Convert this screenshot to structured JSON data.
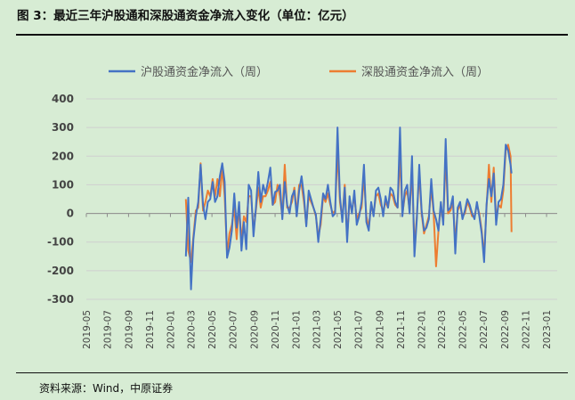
{
  "figure": {
    "title": "图 3：最近三年沪股通和深股通资金净流入变化（单位：亿元）",
    "source": "资料来源：Wind，中原证券"
  },
  "colors": {
    "series_sh": "#4472c4",
    "series_sz": "#ed7d31",
    "background": "#d7ecd4",
    "grid": "#cfcfcf"
  },
  "chart_data": {
    "type": "line",
    "grid": true,
    "legend_position": "top",
    "ylim": [
      -300,
      400
    ],
    "yticks": [
      -300,
      -200,
      -100,
      0,
      100,
      200,
      300,
      400
    ],
    "xlim": [
      "2019-05",
      "2023-02"
    ],
    "xticks": [
      "2019-05",
      "2019-07",
      "2019-09",
      "2019-11",
      "2020-01",
      "2020-03",
      "2020-05",
      "2020-07",
      "2020-09",
      "2020-11",
      "2021-01",
      "2021-03",
      "2021-05",
      "2021-07",
      "2021-09",
      "2021-11",
      "2022-01",
      "2022-03",
      "2022-05",
      "2022-07",
      "2022-09",
      "2022-11",
      "2023-01"
    ],
    "series": [
      {
        "name": "沪股通资金净流入（周）",
        "points": [
          [
            "2020-02-15",
            -150
          ],
          [
            "2020-02-22",
            55
          ],
          [
            "2020-03-01",
            -265
          ],
          [
            "2020-03-08",
            -90
          ],
          [
            "2020-03-15",
            -10
          ],
          [
            "2020-03-22",
            40
          ],
          [
            "2020-03-29",
            170
          ],
          [
            "2020-04-05",
            30
          ],
          [
            "2020-04-12",
            -20
          ],
          [
            "2020-04-19",
            40
          ],
          [
            "2020-04-26",
            50
          ],
          [
            "2020-05-03",
            110
          ],
          [
            "2020-05-10",
            40
          ],
          [
            "2020-05-17",
            60
          ],
          [
            "2020-05-24",
            130
          ],
          [
            "2020-05-31",
            175
          ],
          [
            "2020-06-07",
            110
          ],
          [
            "2020-06-14",
            -155
          ],
          [
            "2020-06-21",
            -120
          ],
          [
            "2020-06-28",
            -60
          ],
          [
            "2020-07-05",
            70
          ],
          [
            "2020-07-12",
            -50
          ],
          [
            "2020-07-19",
            40
          ],
          [
            "2020-07-26",
            -130
          ],
          [
            "2020-08-02",
            -30
          ],
          [
            "2020-08-09",
            -125
          ],
          [
            "2020-08-16",
            100
          ],
          [
            "2020-08-23",
            80
          ],
          [
            "2020-08-30",
            -80
          ],
          [
            "2020-09-06",
            20
          ],
          [
            "2020-09-13",
            145
          ],
          [
            "2020-09-20",
            40
          ],
          [
            "2020-09-27",
            100
          ],
          [
            "2020-10-04",
            70
          ],
          [
            "2020-10-11",
            110
          ],
          [
            "2020-10-18",
            160
          ],
          [
            "2020-10-25",
            30
          ],
          [
            "2020-11-01",
            75
          ],
          [
            "2020-11-08",
            80
          ],
          [
            "2020-11-15",
            100
          ],
          [
            "2020-11-22",
            -20
          ],
          [
            "2020-11-29",
            110
          ],
          [
            "2020-12-06",
            30
          ],
          [
            "2020-12-13",
            0
          ],
          [
            "2020-12-20",
            60
          ],
          [
            "2020-12-27",
            80
          ],
          [
            "2021-01-03",
            -10
          ],
          [
            "2021-01-10",
            80
          ],
          [
            "2021-01-17",
            130
          ],
          [
            "2021-01-24",
            60
          ],
          [
            "2021-01-31",
            -45
          ],
          [
            "2021-02-07",
            80
          ],
          [
            "2021-02-14",
            50
          ],
          [
            "2021-02-21",
            20
          ],
          [
            "2021-02-28",
            -5
          ],
          [
            "2021-03-07",
            -100
          ],
          [
            "2021-03-14",
            -20
          ],
          [
            "2021-03-21",
            70
          ],
          [
            "2021-03-28",
            50
          ],
          [
            "2021-04-04",
            100
          ],
          [
            "2021-04-11",
            40
          ],
          [
            "2021-04-18",
            -10
          ],
          [
            "2021-04-25",
            0
          ],
          [
            "2021-05-02",
            300
          ],
          [
            "2021-05-09",
            60
          ],
          [
            "2021-05-16",
            -30
          ],
          [
            "2021-05-23",
            90
          ],
          [
            "2021-05-30",
            -100
          ],
          [
            "2021-06-06",
            60
          ],
          [
            "2021-06-13",
            0
          ],
          [
            "2021-06-20",
            80
          ],
          [
            "2021-06-27",
            -40
          ],
          [
            "2021-07-04",
            -10
          ],
          [
            "2021-07-11",
            40
          ],
          [
            "2021-07-18",
            170
          ],
          [
            "2021-07-25",
            -30
          ],
          [
            "2021-08-01",
            -60
          ],
          [
            "2021-08-08",
            40
          ],
          [
            "2021-08-15",
            -10
          ],
          [
            "2021-08-22",
            80
          ],
          [
            "2021-08-29",
            90
          ],
          [
            "2021-09-05",
            50
          ],
          [
            "2021-09-12",
            -10
          ],
          [
            "2021-09-19",
            60
          ],
          [
            "2021-09-26",
            20
          ],
          [
            "2021-10-03",
            90
          ],
          [
            "2021-10-10",
            80
          ],
          [
            "2021-10-17",
            40
          ],
          [
            "2021-10-24",
            20
          ],
          [
            "2021-10-31",
            300
          ],
          [
            "2021-11-07",
            -10
          ],
          [
            "2021-11-14",
            80
          ],
          [
            "2021-11-21",
            100
          ],
          [
            "2021-11-28",
            0
          ],
          [
            "2021-12-05",
            200
          ],
          [
            "2021-12-12",
            -150
          ],
          [
            "2021-12-19",
            -20
          ],
          [
            "2021-12-26",
            170
          ],
          [
            "2022-01-02",
            10
          ],
          [
            "2022-01-09",
            -60
          ],
          [
            "2022-01-16",
            -50
          ],
          [
            "2022-01-23",
            -20
          ],
          [
            "2022-01-30",
            120
          ],
          [
            "2022-02-06",
            10
          ],
          [
            "2022-02-13",
            -20
          ],
          [
            "2022-02-20",
            -60
          ],
          [
            "2022-02-27",
            40
          ],
          [
            "2022-03-06",
            -40
          ],
          [
            "2022-03-13",
            260
          ],
          [
            "2022-03-20",
            10
          ],
          [
            "2022-03-27",
            20
          ],
          [
            "2022-04-03",
            60
          ],
          [
            "2022-04-10",
            -140
          ],
          [
            "2022-04-17",
            20
          ],
          [
            "2022-04-24",
            40
          ],
          [
            "2022-05-01",
            -20
          ],
          [
            "2022-05-08",
            10
          ],
          [
            "2022-05-15",
            50
          ],
          [
            "2022-05-22",
            30
          ],
          [
            "2022-05-29",
            0
          ],
          [
            "2022-06-05",
            -20
          ],
          [
            "2022-06-12",
            40
          ],
          [
            "2022-06-19",
            -10
          ],
          [
            "2022-06-26",
            -70
          ],
          [
            "2022-07-03",
            -170
          ],
          [
            "2022-07-10",
            30
          ],
          [
            "2022-07-17",
            120
          ],
          [
            "2022-07-24",
            60
          ],
          [
            "2022-07-31",
            140
          ],
          [
            "2022-08-07",
            -40
          ],
          [
            "2022-08-14",
            40
          ],
          [
            "2022-08-21",
            50
          ],
          [
            "2022-08-28",
            100
          ],
          [
            "2022-09-04",
            240
          ],
          [
            "2022-09-11",
            220
          ],
          [
            "2022-09-18",
            170
          ],
          [
            "2022-09-21",
            140
          ]
        ]
      },
      {
        "name": "深股通资金净流入（周）",
        "points": [
          [
            "2020-02-15",
            50
          ],
          [
            "2020-02-22",
            -130
          ],
          [
            "2020-03-01",
            -170
          ],
          [
            "2020-03-08",
            -80
          ],
          [
            "2020-03-15",
            10
          ],
          [
            "2020-03-22",
            20
          ],
          [
            "2020-03-29",
            175
          ],
          [
            "2020-04-05",
            10
          ],
          [
            "2020-04-12",
            40
          ],
          [
            "2020-04-19",
            80
          ],
          [
            "2020-04-26",
            60
          ],
          [
            "2020-05-03",
            120
          ],
          [
            "2020-05-10",
            60
          ],
          [
            "2020-05-17",
            120
          ],
          [
            "2020-05-24",
            60
          ],
          [
            "2020-05-31",
            160
          ],
          [
            "2020-06-07",
            60
          ],
          [
            "2020-06-14",
            -140
          ],
          [
            "2020-06-21",
            -70
          ],
          [
            "2020-06-28",
            -40
          ],
          [
            "2020-07-05",
            20
          ],
          [
            "2020-07-12",
            -90
          ],
          [
            "2020-07-19",
            30
          ],
          [
            "2020-07-26",
            -100
          ],
          [
            "2020-08-02",
            -10
          ],
          [
            "2020-08-09",
            -30
          ],
          [
            "2020-08-16",
            60
          ],
          [
            "2020-08-23",
            60
          ],
          [
            "2020-08-30",
            -60
          ],
          [
            "2020-09-06",
            10
          ],
          [
            "2020-09-13",
            90
          ],
          [
            "2020-09-20",
            20
          ],
          [
            "2020-09-27",
            60
          ],
          [
            "2020-10-04",
            60
          ],
          [
            "2020-10-11",
            80
          ],
          [
            "2020-10-18",
            110
          ],
          [
            "2020-10-25",
            30
          ],
          [
            "2020-11-01",
            40
          ],
          [
            "2020-11-08",
            100
          ],
          [
            "2020-11-15",
            60
          ],
          [
            "2020-11-22",
            -10
          ],
          [
            "2020-11-29",
            170
          ],
          [
            "2020-12-06",
            20
          ],
          [
            "2020-12-13",
            20
          ],
          [
            "2020-12-20",
            40
          ],
          [
            "2020-12-27",
            90
          ],
          [
            "2021-01-03",
            0
          ],
          [
            "2021-01-10",
            100
          ],
          [
            "2021-01-17",
            100
          ],
          [
            "2021-01-24",
            40
          ],
          [
            "2021-01-31",
            -40
          ],
          [
            "2021-02-07",
            60
          ],
          [
            "2021-02-14",
            40
          ],
          [
            "2021-02-21",
            20
          ],
          [
            "2021-02-28",
            -10
          ],
          [
            "2021-03-07",
            -80
          ],
          [
            "2021-03-14",
            -40
          ],
          [
            "2021-03-21",
            60
          ],
          [
            "2021-03-28",
            40
          ],
          [
            "2021-04-04",
            70
          ],
          [
            "2021-04-11",
            30
          ],
          [
            "2021-04-18",
            0
          ],
          [
            "2021-04-25",
            10
          ],
          [
            "2021-05-02",
            220
          ],
          [
            "2021-05-09",
            40
          ],
          [
            "2021-05-16",
            -20
          ],
          [
            "2021-05-23",
            100
          ],
          [
            "2021-05-30",
            -80
          ],
          [
            "2021-06-06",
            40
          ],
          [
            "2021-06-13",
            10
          ],
          [
            "2021-06-20",
            60
          ],
          [
            "2021-06-27",
            -20
          ],
          [
            "2021-07-04",
            0
          ],
          [
            "2021-07-11",
            20
          ],
          [
            "2021-07-18",
            130
          ],
          [
            "2021-07-25",
            -10
          ],
          [
            "2021-08-01",
            -50
          ],
          [
            "2021-08-08",
            30
          ],
          [
            "2021-08-15",
            0
          ],
          [
            "2021-08-22",
            60
          ],
          [
            "2021-08-29",
            70
          ],
          [
            "2021-09-05",
            30
          ],
          [
            "2021-09-12",
            10
          ],
          [
            "2021-09-19",
            40
          ],
          [
            "2021-09-26",
            20
          ],
          [
            "2021-10-03",
            70
          ],
          [
            "2021-10-10",
            60
          ],
          [
            "2021-10-17",
            30
          ],
          [
            "2021-10-24",
            20
          ],
          [
            "2021-10-31",
            200
          ],
          [
            "2021-11-07",
            0
          ],
          [
            "2021-11-14",
            60
          ],
          [
            "2021-11-21",
            80
          ],
          [
            "2021-11-28",
            10
          ],
          [
            "2021-12-05",
            150
          ],
          [
            "2021-12-12",
            -120
          ],
          [
            "2021-12-19",
            -10
          ],
          [
            "2021-12-26",
            140
          ],
          [
            "2022-01-02",
            0
          ],
          [
            "2022-01-09",
            -70
          ],
          [
            "2022-01-16",
            -40
          ],
          [
            "2022-01-23",
            -10
          ],
          [
            "2022-01-30",
            90
          ],
          [
            "2022-02-06",
            0
          ],
          [
            "2022-02-13",
            -185
          ],
          [
            "2022-02-20",
            -60
          ],
          [
            "2022-02-27",
            30
          ],
          [
            "2022-03-06",
            -30
          ],
          [
            "2022-03-13",
            200
          ],
          [
            "2022-03-20",
            0
          ],
          [
            "2022-03-27",
            10
          ],
          [
            "2022-04-03",
            40
          ],
          [
            "2022-04-10",
            -100
          ],
          [
            "2022-04-17",
            10
          ],
          [
            "2022-04-24",
            30
          ],
          [
            "2022-05-01",
            -10
          ],
          [
            "2022-05-08",
            0
          ],
          [
            "2022-05-15",
            40
          ],
          [
            "2022-05-22",
            20
          ],
          [
            "2022-05-29",
            -10
          ],
          [
            "2022-06-05",
            -10
          ],
          [
            "2022-06-12",
            30
          ],
          [
            "2022-06-19",
            0
          ],
          [
            "2022-06-26",
            -60
          ],
          [
            "2022-07-03",
            -150
          ],
          [
            "2022-07-10",
            20
          ],
          [
            "2022-07-17",
            170
          ],
          [
            "2022-07-24",
            40
          ],
          [
            "2022-07-31",
            160
          ],
          [
            "2022-08-07",
            -20
          ],
          [
            "2022-08-14",
            30
          ],
          [
            "2022-08-21",
            20
          ],
          [
            "2022-08-28",
            80
          ],
          [
            "2022-09-04",
            220
          ],
          [
            "2022-09-11",
            240
          ],
          [
            "2022-09-18",
            200
          ],
          [
            "2022-09-21",
            -65
          ]
        ]
      }
    ]
  }
}
